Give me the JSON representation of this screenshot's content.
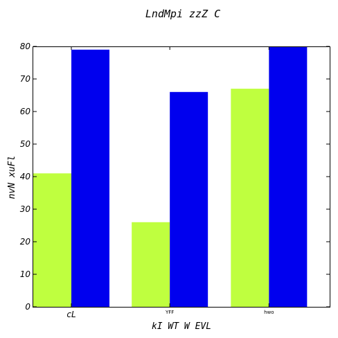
{
  "chart_data": {
    "type": "bar",
    "title": "LndMpi   zzZ C",
    "xlabel": "kI WT  W EVL",
    "ylabel": "nvN xuFl",
    "categories": [
      "cL",
      "YFF",
      "hwo"
    ],
    "category_label_sizes": [
      "large",
      "tiny",
      "tiny"
    ],
    "series": [
      {
        "values": [
          41,
          26,
          67
        ],
        "color": "#bfff3f"
      },
      {
        "values": [
          79,
          66,
          80
        ],
        "color": "#0000ee"
      }
    ],
    "ylim": [
      0,
      80
    ],
    "yticks": [
      0,
      10,
      20,
      30,
      40,
      50,
      60,
      70,
      80
    ],
    "grid": false,
    "legend": "none"
  }
}
